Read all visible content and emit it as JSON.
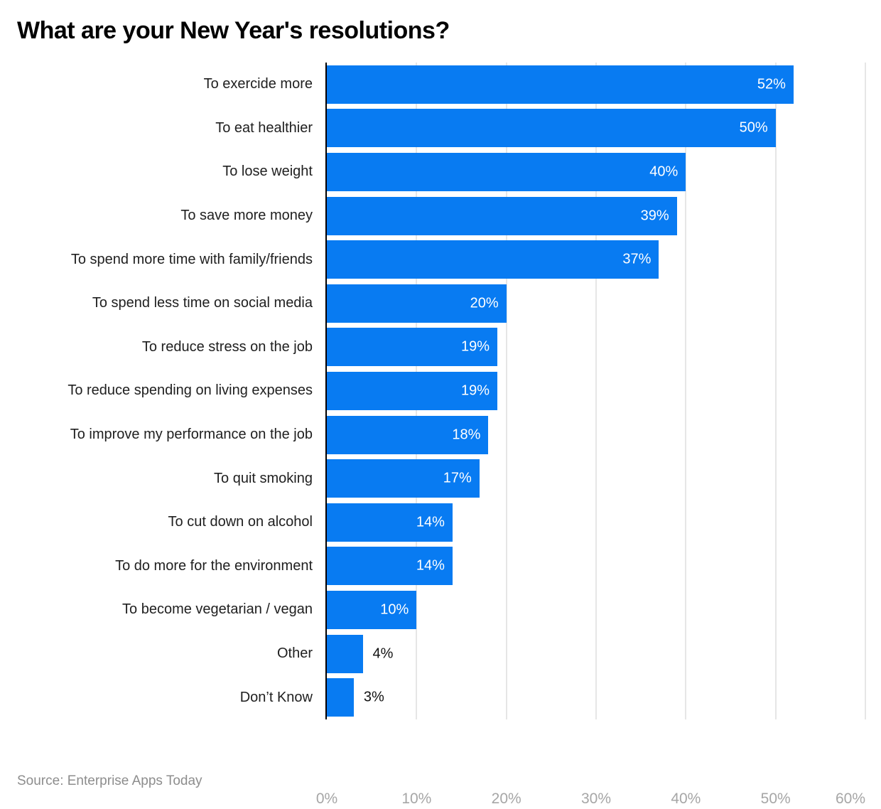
{
  "header": {
    "title": "What are your New Year's resolutions?"
  },
  "footer": {
    "source": "Source: Enterprise Apps Today"
  },
  "colors": {
    "bar": "#087bf2",
    "gridline": "#e6e6e6",
    "axis": "#000000",
    "tick": "#a6a6a6",
    "label": "#202020",
    "value_inside": "#ffffff",
    "value_outside": "#111111",
    "source_text": "#8d8d8d",
    "background": "#ffffff"
  },
  "chart_data": {
    "type": "bar",
    "orientation": "horizontal",
    "title": "What are your New Year's resolutions?",
    "xlabel": "",
    "ylabel": "",
    "categories": [
      "To exercide more",
      "To eat healthier",
      "To lose weight",
      "To save more money",
      "To spend more time with family/friends",
      "To spend less time on social media",
      "To reduce stress on the job",
      "To reduce spending on living expenses",
      "To improve my performance on the job",
      "To quit smoking",
      "To cut down on alcohol",
      "To do more for the environment",
      "To become vegetarian / vegan",
      "Other",
      "Don’t Know"
    ],
    "values": [
      52,
      50,
      40,
      39,
      37,
      20,
      19,
      19,
      18,
      17,
      14,
      14,
      10,
      4,
      3
    ],
    "value_labels": [
      "52%",
      "50%",
      "40%",
      "39%",
      "37%",
      "20%",
      "19%",
      "19%",
      "18%",
      "17%",
      "14%",
      "14%",
      "10%",
      "4%",
      "3%"
    ],
    "xlim": [
      0,
      60
    ],
    "x_ticks": [
      "0%",
      "10%",
      "20%",
      "30%",
      "40%",
      "50%",
      "60%"
    ],
    "x_tick_values": [
      0,
      10,
      20,
      30,
      40,
      50,
      60
    ],
    "grid": "vertical-gridlines-on",
    "legend": "none",
    "value_label_inside_min": 10
  }
}
